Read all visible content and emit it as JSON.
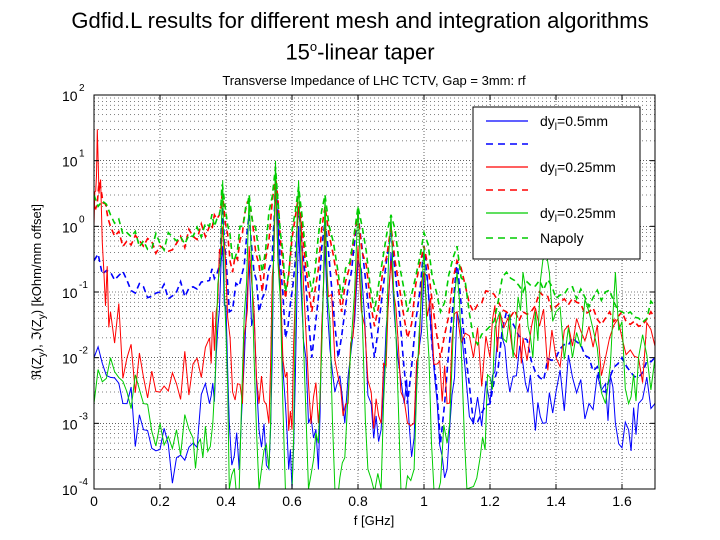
{
  "slide": {
    "title_line1": "Gdfid.L results for different mesh and integration algorithms",
    "title_line2_main": "15",
    "title_line2_sup": "o",
    "title_line2_rest": "-linear taper"
  },
  "chart_data": {
    "type": "line",
    "title": "Transverse Impedance of LHC TCTV, Gap = 3mm: rf",
    "xlabel": "f [GHz]",
    "ylabel": "ℜ(Z⊥), ℑ(Z⊥) [kOhm/mm offset]",
    "ylabel_parts": {
      "a": "ℜ(Z",
      "a_sub": "y",
      "b": "), ℑ(Z",
      "b_sub": "y",
      "c": ") [kOhm/mm offset]"
    },
    "xlim": [
      0,
      1.7
    ],
    "ylim": [
      0.0001,
      100
    ],
    "yscale": "log",
    "grid": true,
    "legend_position": "top-right",
    "x_ticks": [
      "0",
      "0.2",
      "0.4",
      "0.6",
      "0.8",
      "1",
      "1.2",
      "1.4",
      "1.6"
    ],
    "x_tick_values": [
      0,
      0.2,
      0.4,
      0.6,
      0.8,
      1.0,
      1.2,
      1.4,
      1.6
    ],
    "y_ticks": [
      {
        "value": 100,
        "base": "10",
        "exp": "2"
      },
      {
        "value": 10,
        "base": "10",
        "exp": "1"
      },
      {
        "value": 1,
        "base": "10",
        "exp": "0"
      },
      {
        "value": 0.1,
        "base": "10",
        "exp": "-1"
      },
      {
        "value": 0.01,
        "base": "10",
        "exp": "-2"
      },
      {
        "value": 0.001,
        "base": "10",
        "exp": "-3"
      },
      {
        "value": 0.0001,
        "base": "10",
        "exp": "-4"
      }
    ],
    "legend": [
      {
        "text": "dy",
        "sub": "l",
        "rest": "=0.5mm",
        "color": "#0000ff",
        "dash": "solid"
      },
      {
        "text": "",
        "sub": "",
        "rest": "",
        "color": "#0000ff",
        "dash": "dashed"
      },
      {
        "text": "dy",
        "sub": "l",
        "rest": "=0.25mm",
        "color": "#ff0000",
        "dash": "solid"
      },
      {
        "text": "",
        "sub": "",
        "rest": "",
        "color": "#ff0000",
        "dash": "dashed"
      },
      {
        "text": "dy",
        "sub": "l",
        "rest": "=0.25mm",
        "color": "#00cc00",
        "dash": "solid"
      },
      {
        "text": "Napoly",
        "sub": "",
        "rest": "",
        "color": "#00cc00",
        "dash": "dashed"
      }
    ],
    "resonances_GHz": [
      0.39,
      0.47,
      0.55,
      0.62,
      0.7,
      0.8,
      0.9,
      1.0,
      1.1,
      1.23,
      1.3,
      1.36,
      1.45,
      1.58,
      1.68
    ],
    "series": [
      {
        "name": "dyl=0.5mm (real)",
        "color": "#0000ff",
        "dash": "solid",
        "x": [
          0.0,
          0.05,
          0.1,
          0.15,
          0.2,
          0.25,
          0.3,
          0.35,
          0.37,
          0.39,
          0.41,
          0.44,
          0.47,
          0.5,
          0.53,
          0.55,
          0.58,
          0.6,
          0.62,
          0.65,
          0.68,
          0.7,
          0.73,
          0.76,
          0.8,
          0.84,
          0.87,
          0.9,
          0.94,
          0.97,
          1.0,
          1.04,
          1.07,
          1.1,
          1.15,
          1.2,
          1.23,
          1.26,
          1.3,
          1.33,
          1.36,
          1.4,
          1.45,
          1.5,
          1.55,
          1.58,
          1.62,
          1.65,
          1.7
        ],
        "y": [
          0.01,
          0.005,
          0.002,
          0.0008,
          0.0004,
          0.0003,
          0.0005,
          0.002,
          0.01,
          0.5,
          0.001,
          0.0002,
          0.3,
          0.0008,
          0.0002,
          3,
          0.002,
          0.0001,
          1,
          0.001,
          0.0002,
          0.5,
          0.003,
          0.001,
          0.3,
          0.002,
          0.0008,
          0.4,
          0.002,
          0.0006,
          0.2,
          0.002,
          0.0002,
          0.05,
          0.001,
          0.002,
          0.02,
          0.003,
          0.008,
          0.002,
          0.001,
          0.003,
          0.005,
          0.002,
          0.004,
          0.001,
          0.0008,
          0.002,
          0.002
        ]
      },
      {
        "name": "dyl=0.5mm (imag)",
        "color": "#0000ff",
        "dash": "dashed",
        "x": [
          0.0,
          0.05,
          0.1,
          0.15,
          0.2,
          0.25,
          0.3,
          0.35,
          0.38,
          0.39,
          0.41,
          0.45,
          0.47,
          0.5,
          0.54,
          0.55,
          0.58,
          0.61,
          0.62,
          0.66,
          0.7,
          0.74,
          0.78,
          0.8,
          0.85,
          0.9,
          0.95,
          1.0,
          1.05,
          1.1,
          1.15,
          1.2,
          1.25,
          1.3,
          1.35,
          1.4,
          1.45,
          1.5,
          1.55,
          1.6,
          1.65,
          1.7
        ],
        "y": [
          0.3,
          0.2,
          0.15,
          0.12,
          0.1,
          0.1,
          0.12,
          0.15,
          0.25,
          2,
          0.05,
          0.2,
          1.5,
          0.05,
          0.3,
          5,
          0.02,
          0.3,
          2,
          0.01,
          1.2,
          0.01,
          0.2,
          1.5,
          0.01,
          0.8,
          0.002,
          0.5,
          0.0005,
          0.3,
          0.001,
          0.002,
          0.05,
          0.02,
          0.005,
          0.01,
          0.02,
          0.01,
          0.003,
          0.01,
          0.005,
          0.01
        ]
      },
      {
        "name": "dyl=0.25mm (real)",
        "color": "#ff0000",
        "dash": "solid",
        "x": [
          0.0,
          0.01,
          0.03,
          0.05,
          0.1,
          0.15,
          0.2,
          0.25,
          0.3,
          0.35,
          0.37,
          0.39,
          0.42,
          0.45,
          0.47,
          0.5,
          0.53,
          0.55,
          0.58,
          0.6,
          0.62,
          0.65,
          0.68,
          0.7,
          0.74,
          0.77,
          0.8,
          0.84,
          0.87,
          0.9,
          0.93,
          0.97,
          1.0,
          1.04,
          1.07,
          1.1,
          1.15,
          1.2,
          1.23,
          1.28,
          1.3,
          1.35,
          1.4,
          1.45,
          1.5,
          1.55,
          1.6,
          1.65,
          1.7
        ],
        "y": [
          1,
          30,
          0.2,
          0.05,
          0.01,
          0.005,
          0.003,
          0.004,
          0.008,
          0.02,
          0.05,
          1,
          0.003,
          0.002,
          0.5,
          0.002,
          0.001,
          5,
          0.005,
          0.0008,
          2,
          0.004,
          0.001,
          1,
          0.005,
          0.002,
          0.5,
          0.003,
          0.001,
          0.3,
          0.003,
          0.001,
          0.2,
          0.008,
          0.002,
          0.05,
          0.01,
          0.01,
          0.05,
          0.01,
          0.02,
          0.03,
          0.01,
          0.015,
          0.03,
          0.01,
          0.02,
          0.01,
          0.015
        ]
      },
      {
        "name": "dyl=0.25mm (imag)",
        "color": "#ff0000",
        "dash": "dashed",
        "x": [
          0.0,
          0.02,
          0.05,
          0.1,
          0.15,
          0.2,
          0.25,
          0.3,
          0.35,
          0.38,
          0.39,
          0.42,
          0.45,
          0.47,
          0.51,
          0.55,
          0.58,
          0.62,
          0.66,
          0.7,
          0.75,
          0.8,
          0.85,
          0.9,
          0.95,
          1.0,
          1.05,
          1.1,
          1.15,
          1.2,
          1.25,
          1.3,
          1.35,
          1.4,
          1.45,
          1.5,
          1.55,
          1.6,
          1.65,
          1.7
        ],
        "y": [
          2,
          4,
          1,
          0.6,
          0.5,
          0.5,
          0.55,
          0.7,
          1,
          1.5,
          3,
          0.2,
          0.8,
          2.5,
          0.1,
          6,
          0.08,
          3,
          0.05,
          2,
          0.05,
          1.5,
          0.03,
          1,
          0.02,
          0.5,
          0.01,
          0.3,
          0.05,
          0.1,
          0.05,
          0.05,
          0.1,
          0.06,
          0.08,
          0.05,
          0.04,
          0.05,
          0.03,
          0.04
        ]
      },
      {
        "name": "dyl=0.25mm (green real)",
        "color": "#00cc00",
        "dash": "solid",
        "x": [
          0.0,
          0.05,
          0.1,
          0.15,
          0.2,
          0.25,
          0.3,
          0.33,
          0.36,
          0.39,
          0.41,
          0.44,
          0.47,
          0.5,
          0.53,
          0.55,
          0.58,
          0.6,
          0.62,
          0.65,
          0.68,
          0.7,
          0.73,
          0.76,
          0.8,
          0.83,
          0.87,
          0.9,
          0.93,
          0.97,
          1.0,
          1.03,
          1.07,
          1.1,
          1.13,
          1.17,
          1.2,
          1.23,
          1.27,
          1.3,
          1.33,
          1.36,
          1.4,
          1.45,
          1.5,
          1.55,
          1.58,
          1.62,
          1.65,
          1.7
        ],
        "y": [
          0.002,
          0.01,
          0.003,
          0.002,
          0.001,
          0.0008,
          0.0006,
          0.0003,
          0.001,
          5,
          0.0001,
          0.0001,
          3,
          0.0001,
          0.0002,
          10,
          0.0001,
          0.0001,
          5,
          0.0001,
          0.0005,
          3,
          0.0001,
          0.0003,
          2,
          0.0002,
          0.0001,
          1.5,
          0.0001,
          0.0002,
          0.5,
          0.0001,
          0.0005,
          0.2,
          0.0001,
          0.0003,
          0.005,
          0.05,
          0.01,
          0.2,
          0.01,
          0.3,
          0.05,
          0.01,
          0.05,
          0.002,
          0.2,
          0.002,
          0.01,
          0.01
        ]
      },
      {
        "name": "Napoly",
        "color": "#00cc00",
        "dash": "dashed",
        "x": [
          0.0,
          0.05,
          0.1,
          0.15,
          0.2,
          0.25,
          0.3,
          0.35,
          0.38,
          0.39,
          0.42,
          0.45,
          0.47,
          0.51,
          0.55,
          0.58,
          0.62,
          0.66,
          0.7,
          0.75,
          0.8,
          0.85,
          0.9,
          0.95,
          1.0,
          1.05,
          1.1,
          1.15,
          1.2,
          1.25,
          1.3,
          1.35,
          1.4,
          1.45,
          1.5,
          1.55,
          1.6,
          1.65,
          1.7
        ],
        "y": [
          3,
          1.5,
          0.8,
          0.6,
          0.55,
          0.6,
          0.7,
          1,
          1.5,
          4,
          0.3,
          1,
          3,
          0.2,
          8,
          0.1,
          4,
          0.1,
          3,
          0.08,
          2,
          0.05,
          1.5,
          0.05,
          0.8,
          0.05,
          0.5,
          0.02,
          0.03,
          0.2,
          0.1,
          0.15,
          0.08,
          0.12,
          0.06,
          0.1,
          0.05,
          0.04,
          0.06
        ]
      }
    ]
  }
}
